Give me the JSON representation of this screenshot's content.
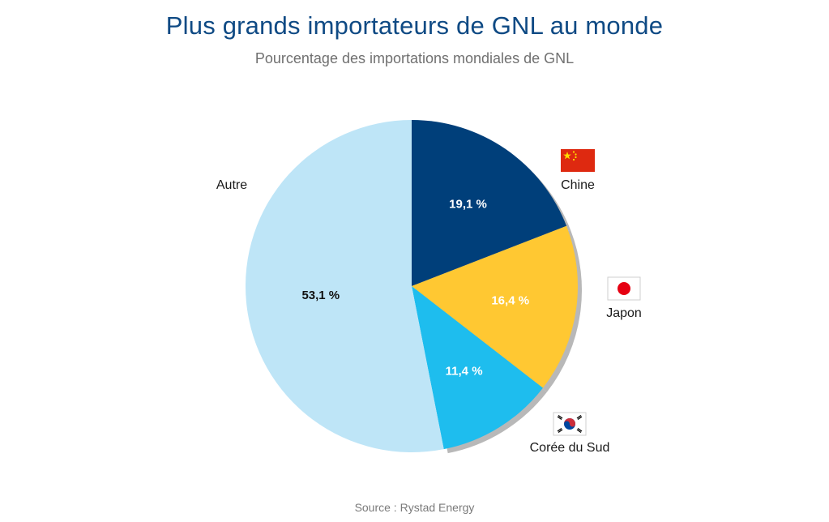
{
  "title": "Plus grands importateurs de GNL au monde",
  "subtitle": "Pourcentage des importations mondiales de GNL",
  "source": "Source : Rystad Energy",
  "chart_data": {
    "type": "pie",
    "start_angle_deg": 0,
    "direction": "clockwise",
    "slices": [
      {
        "name": "Chine",
        "value": 19.1,
        "label": "19,1 %",
        "color": "#003f7a",
        "text_color": "#ffffff",
        "flag": "china-flag"
      },
      {
        "name": "Japon",
        "value": 16.4,
        "label": "16,4 %",
        "color": "#ffc832",
        "text_color": "#ffffff",
        "flag": "japan-flag"
      },
      {
        "name": "Corée du Sud",
        "value": 11.4,
        "label": "11,4 %",
        "color": "#1ebdee",
        "text_color": "#ffffff",
        "flag": "south-korea-flag"
      },
      {
        "name": "Autre",
        "value": 53.1,
        "label": "53,1 %",
        "color": "#bee5f7",
        "text_color": "#111111",
        "flag": ""
      }
    ]
  }
}
